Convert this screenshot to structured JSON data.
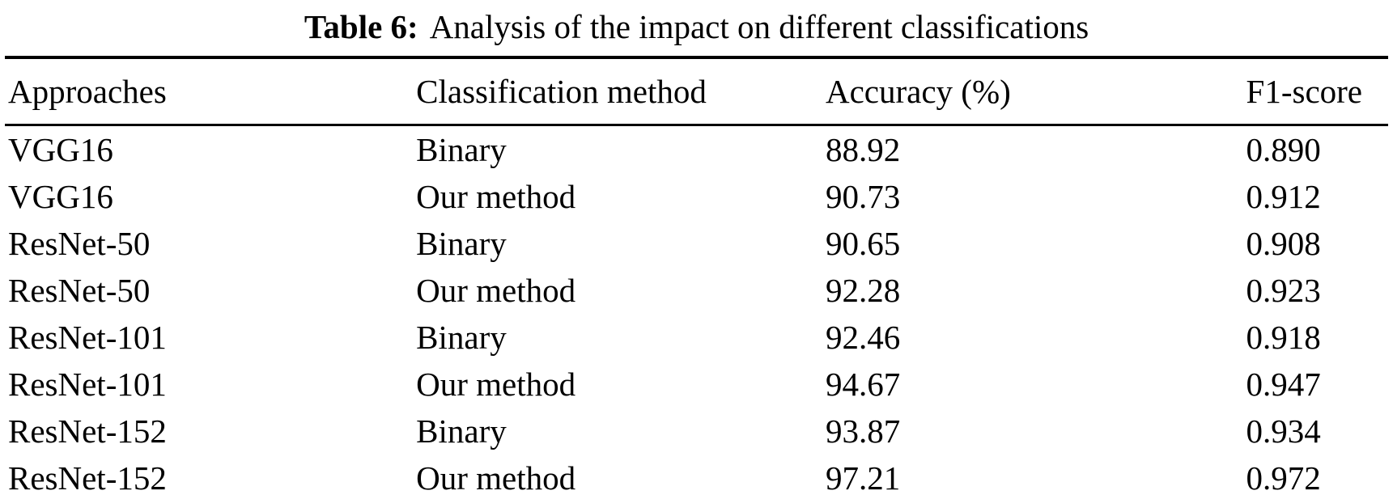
{
  "caption": {
    "label": "Table 6:",
    "text": "Analysis of the impact on different classifications"
  },
  "table": {
    "headers": [
      "Approaches",
      "Classification method",
      "Accuracy (%)",
      "F1-score"
    ],
    "rows": [
      [
        "VGG16",
        "Binary",
        "88.92",
        "0.890"
      ],
      [
        "VGG16",
        "Our method",
        "90.73",
        "0.912"
      ],
      [
        "ResNet-50",
        "Binary",
        "90.65",
        "0.908"
      ],
      [
        "ResNet-50",
        "Our method",
        "92.28",
        "0.923"
      ],
      [
        "ResNet-101",
        "Binary",
        "92.46",
        "0.918"
      ],
      [
        "ResNet-101",
        "Our method",
        "94.67",
        "0.947"
      ],
      [
        "ResNet-152",
        "Binary",
        "93.87",
        "0.934"
      ],
      [
        "ResNet-152",
        "Our method",
        "97.21",
        "0.972"
      ]
    ]
  },
  "chart_data": {
    "type": "table",
    "title": "Table 6: Analysis of the impact on different classifications",
    "columns": [
      "Approaches",
      "Classification method",
      "Accuracy (%)",
      "F1-score"
    ],
    "rows": [
      [
        "VGG16",
        "Binary",
        88.92,
        0.89
      ],
      [
        "VGG16",
        "Our method",
        90.73,
        0.912
      ],
      [
        "ResNet-50",
        "Binary",
        90.65,
        0.908
      ],
      [
        "ResNet-50",
        "Our method",
        92.28,
        0.923
      ],
      [
        "ResNet-101",
        "Binary",
        92.46,
        0.918
      ],
      [
        "ResNet-101",
        "Our method",
        94.67,
        0.947
      ],
      [
        "ResNet-152",
        "Binary",
        93.87,
        0.934
      ],
      [
        "ResNet-152",
        "Our method",
        97.21,
        0.972
      ]
    ]
  }
}
